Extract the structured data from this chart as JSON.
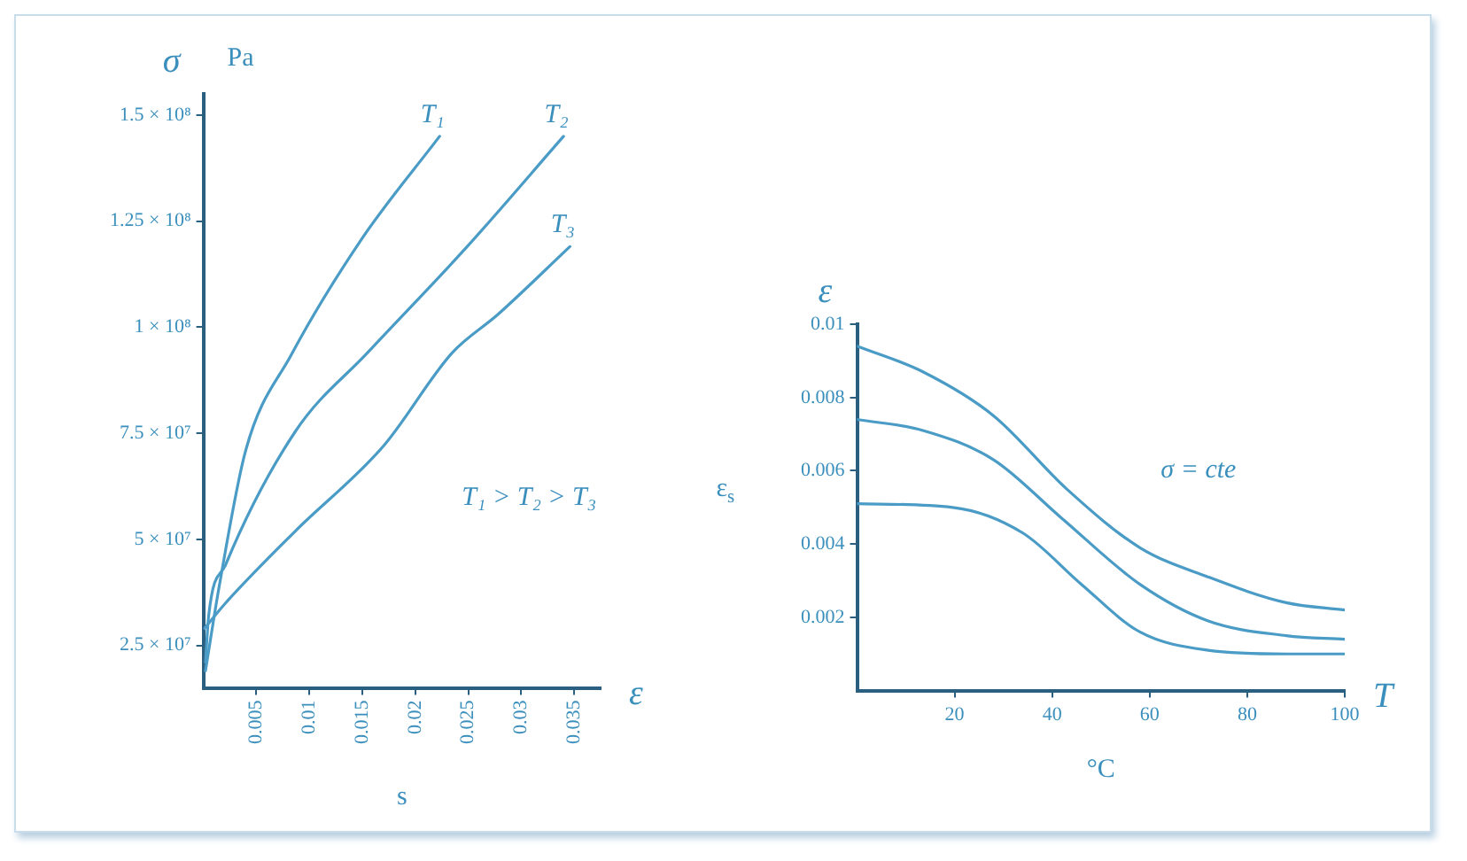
{
  "chart_data": [
    {
      "type": "line",
      "ylabel": "σ",
      "xlabel": "ε",
      "annotations": [
        "Pa",
        "s",
        "T₁ > T₂ > T₃"
      ],
      "xlim": [
        0,
        0.0375
      ],
      "xticks": [
        0.005,
        0.01,
        0.015,
        0.02,
        0.025,
        0.03,
        0.035
      ],
      "ylim": [
        15000000,
        155000000
      ],
      "yticks": [
        {
          "value": 25000000,
          "label": "2.5 × 10⁷"
        },
        {
          "value": 50000000,
          "label": "5 × 10⁷"
        },
        {
          "value": 75000000,
          "label": "7.5 × 10⁷"
        },
        {
          "value": 100000000,
          "label": "1 × 10⁸"
        },
        {
          "value": 125000000,
          "label": "1.25 × 10⁸"
        },
        {
          "value": 150000000,
          "label": "1.5 × 10⁸"
        }
      ],
      "grid": false,
      "legend": false,
      "marker": "none",
      "line_style": "solid",
      "series": [
        {
          "name": "T₁",
          "color": "#4a9cc6",
          "x": [
            0.0002,
            0.0015,
            0.004,
            0.0083,
            0.015,
            0.0223
          ],
          "values": [
            19000000,
            39000000,
            71000000,
            93500000,
            121000000,
            145000000
          ]
        },
        {
          "name": "T₂",
          "color": "#4a9cc6",
          "x": [
            0.0002,
            0.0005,
            0.0021,
            0.0087,
            0.0155,
            0.0249,
            0.034
          ],
          "values": [
            21000000,
            32000000,
            44000000,
            75500000,
            94000000,
            119000000,
            145000000
          ]
        },
        {
          "name": "T₃",
          "color": "#4a9cc6",
          "x": [
            0.0001,
            0.0021,
            0.0087,
            0.017,
            0.0235,
            0.0278,
            0.0346
          ],
          "values": [
            29000000,
            35000000,
            52000000,
            72000000,
            94000000,
            103000000,
            119000000
          ]
        }
      ]
    },
    {
      "type": "line",
      "ylabel": "ε",
      "xlabel": "T",
      "annotations": [
        "ε$_{s}$",
        "°C",
        "σ = cte"
      ],
      "xlim": [
        0,
        100
      ],
      "xticks": [
        20,
        40,
        60,
        80,
        100
      ],
      "ylim": [
        0,
        0.01
      ],
      "yticks": [
        0.002,
        0.004,
        0.006,
        0.008,
        0.01
      ],
      "grid": false,
      "legend": false,
      "marker": "none",
      "line_style": "solid",
      "series": [
        {
          "color": "#4a9cc6",
          "x": [
            0,
            13.5,
            28,
            43,
            58,
            72,
            88,
            100
          ],
          "values": [
            0.0094,
            0.0087,
            0.0075,
            0.0055,
            0.0039,
            0.0031,
            0.0024,
            0.0022
          ]
        },
        {
          "color": "#4a9cc6",
          "x": [
            0,
            13.5,
            28,
            42,
            58,
            72,
            88,
            100
          ],
          "values": [
            0.0074,
            0.0071,
            0.0063,
            0.0047,
            0.0029,
            0.0019,
            0.0015,
            0.0014
          ]
        },
        {
          "color": "#4a9cc6",
          "x": [
            0,
            19.6,
            34,
            46,
            58,
            72,
            88,
            100
          ],
          "values": [
            0.0051,
            0.005,
            0.0043,
            0.0029,
            0.0016,
            0.0011,
            0.001,
            0.001
          ]
        }
      ]
    }
  ]
}
